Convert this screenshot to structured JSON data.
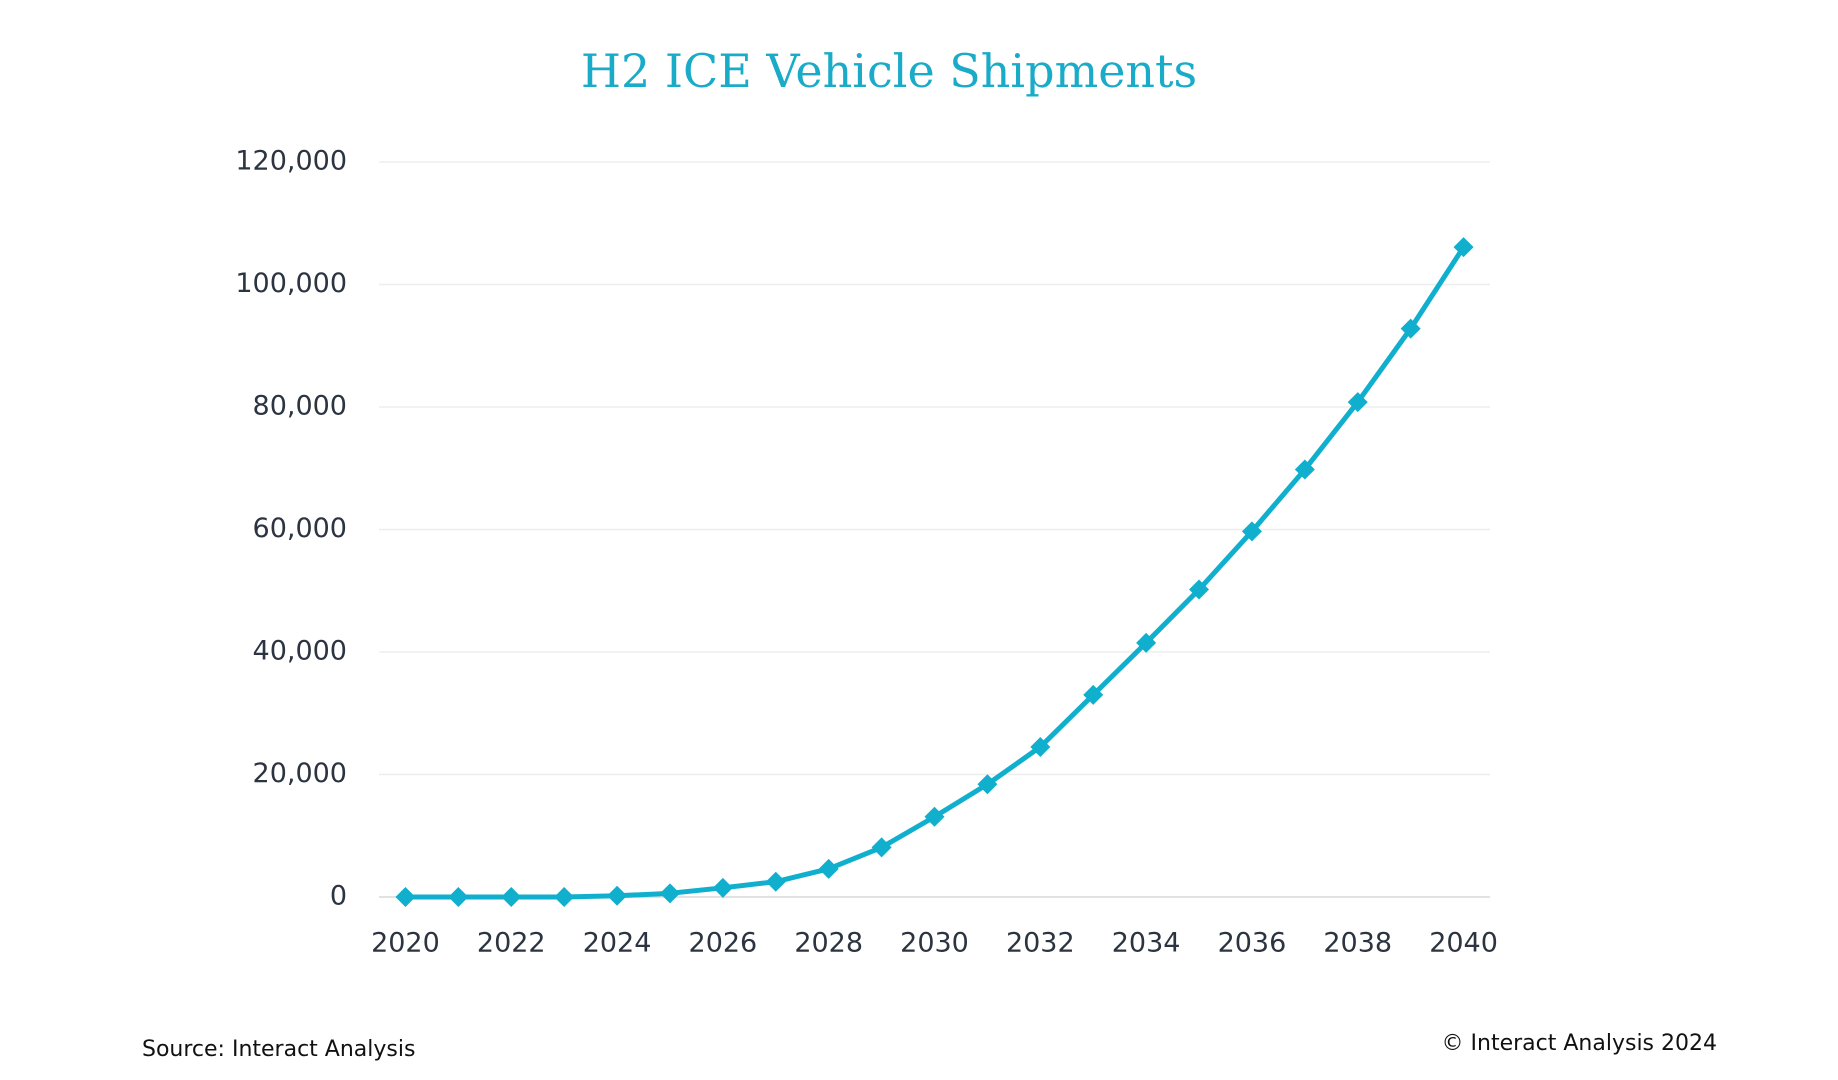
{
  "chart_data": {
    "type": "line",
    "title": "H2 ICE Vehicle Shipments",
    "x": [
      2020,
      2021,
      2022,
      2023,
      2024,
      2025,
      2026,
      2027,
      2028,
      2029,
      2030,
      2031,
      2032,
      2033,
      2034,
      2035,
      2036,
      2037,
      2038,
      2039,
      2040
    ],
    "series": [
      {
        "name": "H2 ICE Vehicle Shipments",
        "color": "#10afcd",
        "values": [
          0,
          0,
          0,
          0,
          200,
          600,
          1500,
          2500,
          4600,
          8100,
          13100,
          18400,
          24500,
          33000,
          41500,
          50200,
          59700,
          69800,
          80800,
          92800,
          106100
        ]
      }
    ],
    "xlim": [
      2019.5,
      2040.5
    ],
    "xticks": [
      2020,
      2022,
      2024,
      2026,
      2028,
      2030,
      2032,
      2034,
      2036,
      2038,
      2040
    ],
    "ylim": [
      0,
      120000
    ],
    "yticks": [
      0,
      {
        "value": 20000,
        "label": "20,000"
      },
      {
        "value": 40000,
        "label": "40,000"
      },
      {
        "value": 60000,
        "label": "60,000"
      },
      {
        "value": 80000,
        "label": "80,000"
      },
      {
        "value": 100000,
        "label": "100,000"
      },
      {
        "value": 120000,
        "label": "120,000"
      }
    ],
    "grid": true,
    "source": "Source: Interact Analysis",
    "copyright": "© Interact Analysis 2024"
  }
}
